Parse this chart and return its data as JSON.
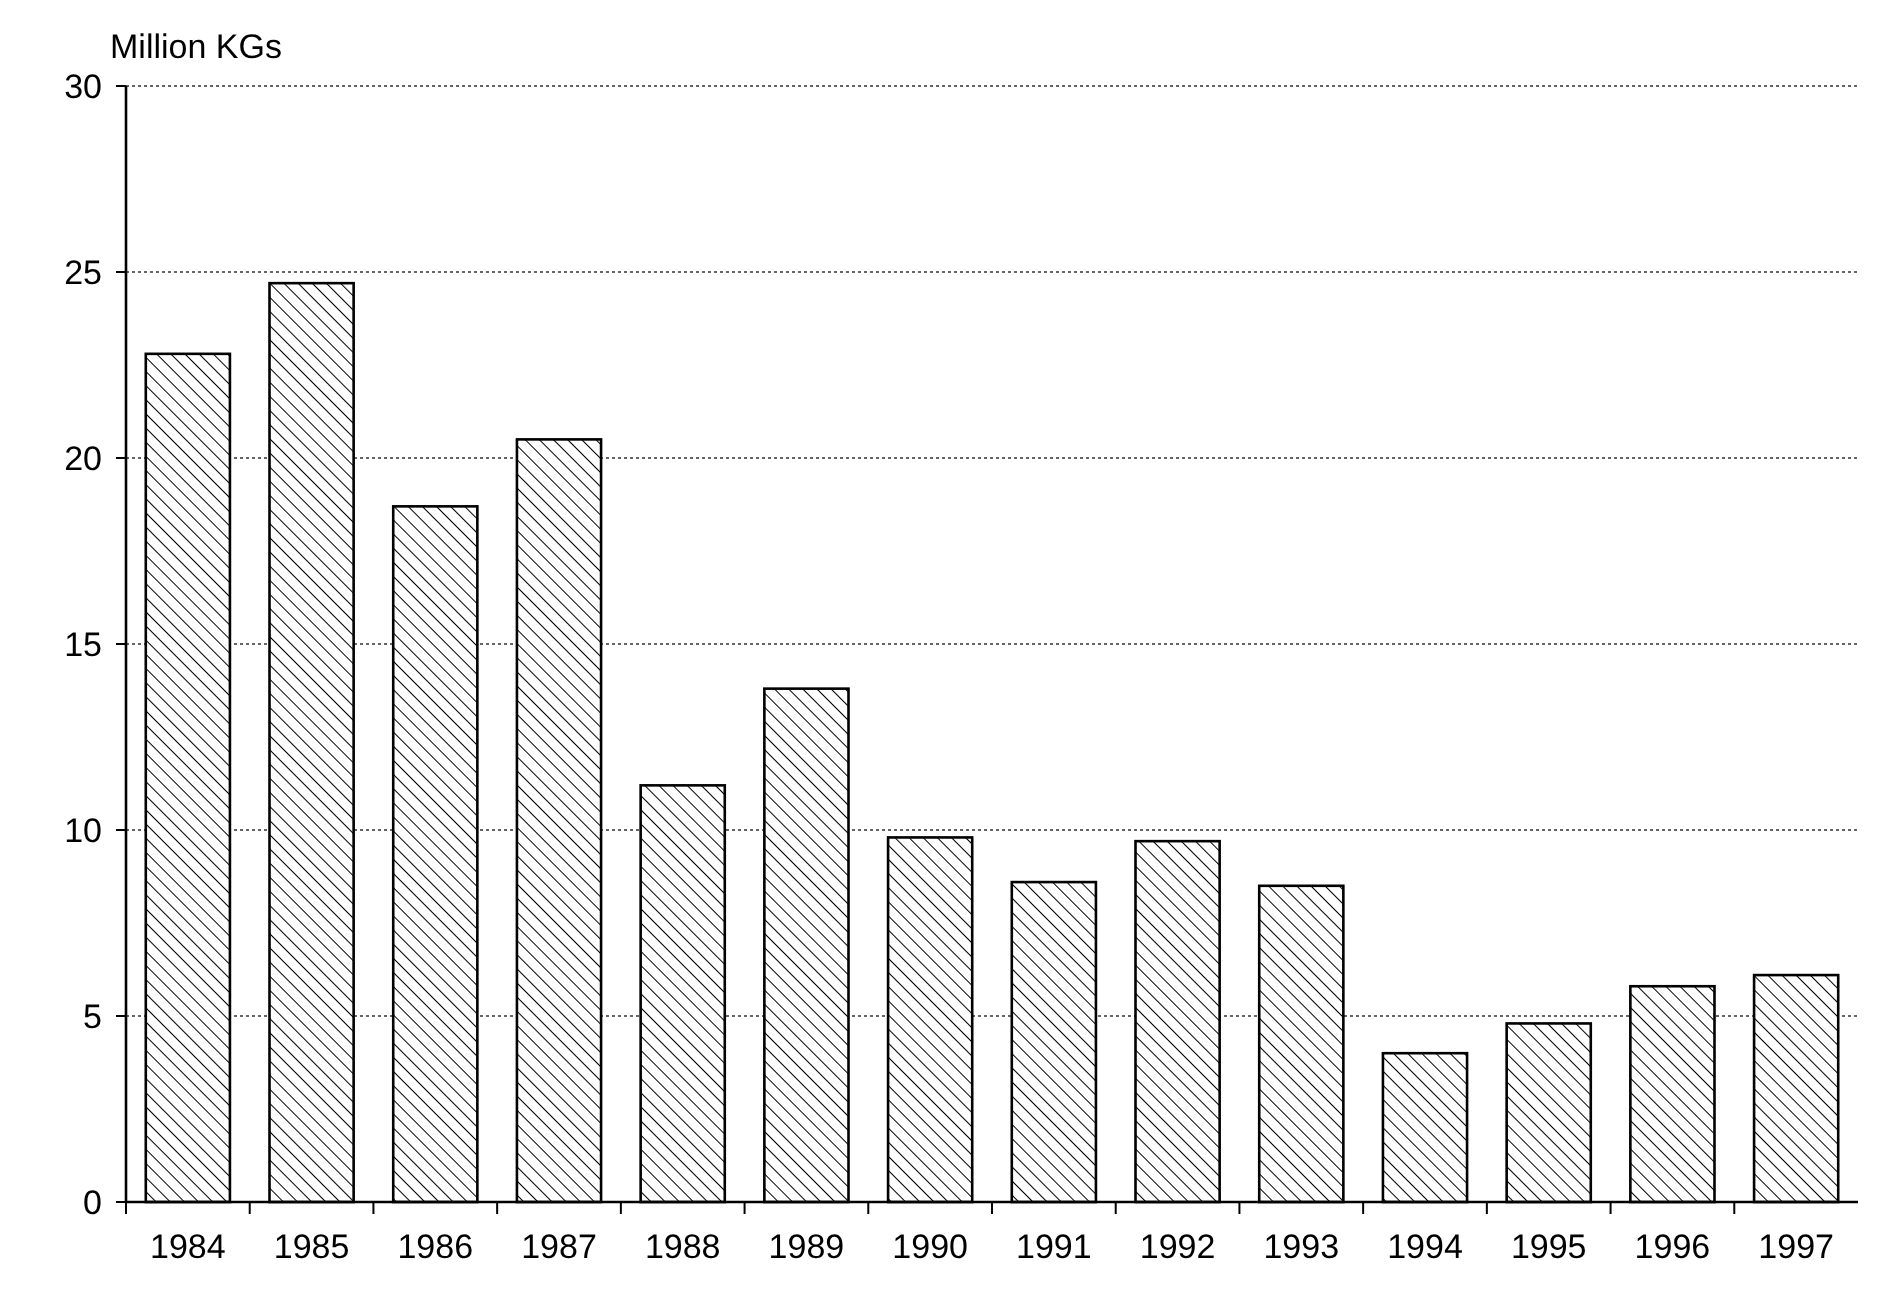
{
  "chart_data": {
    "type": "bar",
    "ylabel": "Million KGs",
    "categories": [
      "1984",
      "1985",
      "1986",
      "1987",
      "1988",
      "1989",
      "1990",
      "1991",
      "1992",
      "1993",
      "1994",
      "1995",
      "1996",
      "1997"
    ],
    "values": [
      22.8,
      24.7,
      18.7,
      20.5,
      11.2,
      13.8,
      9.8,
      8.6,
      9.7,
      8.5,
      4.0,
      4.8,
      5.8,
      6.1
    ],
    "color": "#000000",
    "ylim": [
      0,
      30
    ],
    "yticks": [
      0,
      5,
      10,
      15,
      20,
      25,
      30
    ],
    "grid": "y"
  }
}
